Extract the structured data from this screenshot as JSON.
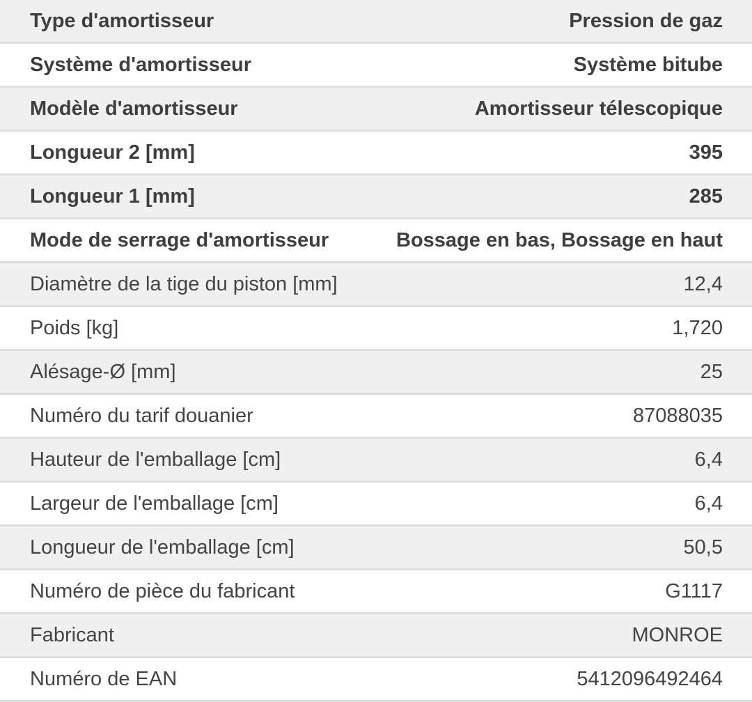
{
  "specs": [
    {
      "label": "Type d'amortisseur",
      "value": "Pression de gaz",
      "emphasis": true
    },
    {
      "label": "Système d'amortisseur",
      "value": "Système bitube",
      "emphasis": true
    },
    {
      "label": "Modèle d'amortisseur",
      "value": "Amortisseur télescopique",
      "emphasis": true
    },
    {
      "label": "Longueur 2 [mm]",
      "value": "395",
      "emphasis": true
    },
    {
      "label": "Longueur 1 [mm]",
      "value": "285",
      "emphasis": true
    },
    {
      "label": "Mode de serrage d'amortisseur",
      "value": "Bossage en bas, Bossage en haut",
      "emphasis": true
    },
    {
      "label": "Diamètre de la tige du piston [mm]",
      "value": "12,4",
      "emphasis": false
    },
    {
      "label": "Poids [kg]",
      "value": "1,720",
      "emphasis": false
    },
    {
      "label": "Alésage-Ø [mm]",
      "value": "25",
      "emphasis": false
    },
    {
      "label": "Numéro du tarif douanier",
      "value": "87088035",
      "emphasis": false
    },
    {
      "label": "Hauteur de l'emballage [cm]",
      "value": "6,4",
      "emphasis": false
    },
    {
      "label": "Largeur de l'emballage [cm]",
      "value": "6,4",
      "emphasis": false
    },
    {
      "label": "Longueur de l'emballage [cm]",
      "value": "50,5",
      "emphasis": false
    },
    {
      "label": "Numéro de pièce du fabricant",
      "value": "G1117",
      "emphasis": false
    },
    {
      "label": "Fabricant",
      "value": "MONROE",
      "emphasis": false
    },
    {
      "label": "Numéro de EAN",
      "value": "5412096492464",
      "emphasis": false
    }
  ],
  "colors": {
    "row_alt": "#f0f0f0",
    "separator": "#dedede",
    "text": "#444444"
  }
}
